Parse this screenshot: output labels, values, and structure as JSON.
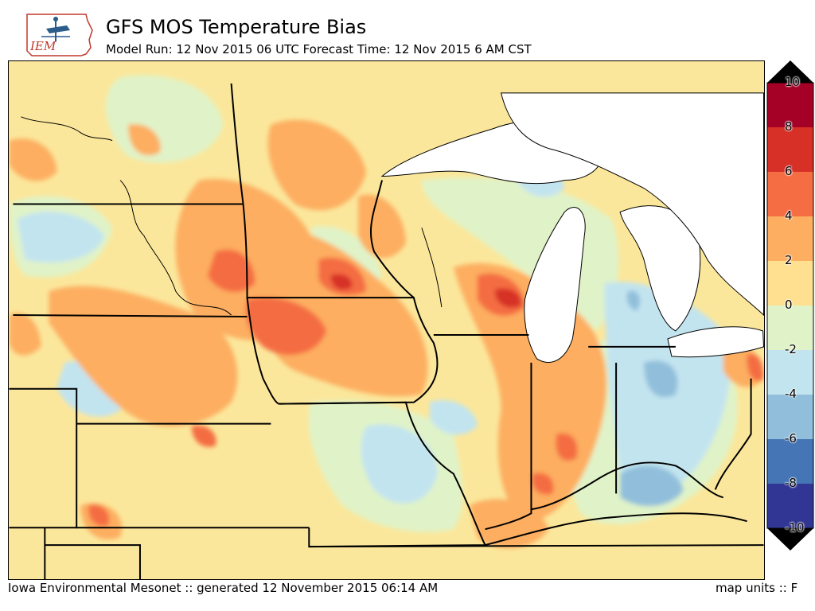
{
  "header": {
    "title": "GFS MOS Temperature Bias",
    "subtitle": "Model Run: 12 Nov 2015 06 UTC Forecast Time: 12 Nov 2015 6 AM CST",
    "logo_text": "IEM"
  },
  "colorbar": {
    "labels": [
      "10",
      "8",
      "6",
      "4",
      "2",
      "0",
      "-2",
      "-4",
      "-6",
      "-8",
      "-10"
    ],
    "colors": [
      "#a50026",
      "#d73027",
      "#f46d43",
      "#fdae61",
      "#fee090",
      "#e0f3c8",
      "#c2e4ef",
      "#91bfdb",
      "#4575b4",
      "#313695"
    ],
    "over_color": "#000000",
    "under_color": "#000000"
  },
  "map": {
    "region": "Upper Midwest / Great Lakes",
    "variable": "temperature bias",
    "lake_color": "#ffffff",
    "border_color": "#000000"
  },
  "footer": {
    "left": "Iowa Environmental Mesonet :: generated 12 November 2015 06:14 AM",
    "right": "map units :: F"
  }
}
